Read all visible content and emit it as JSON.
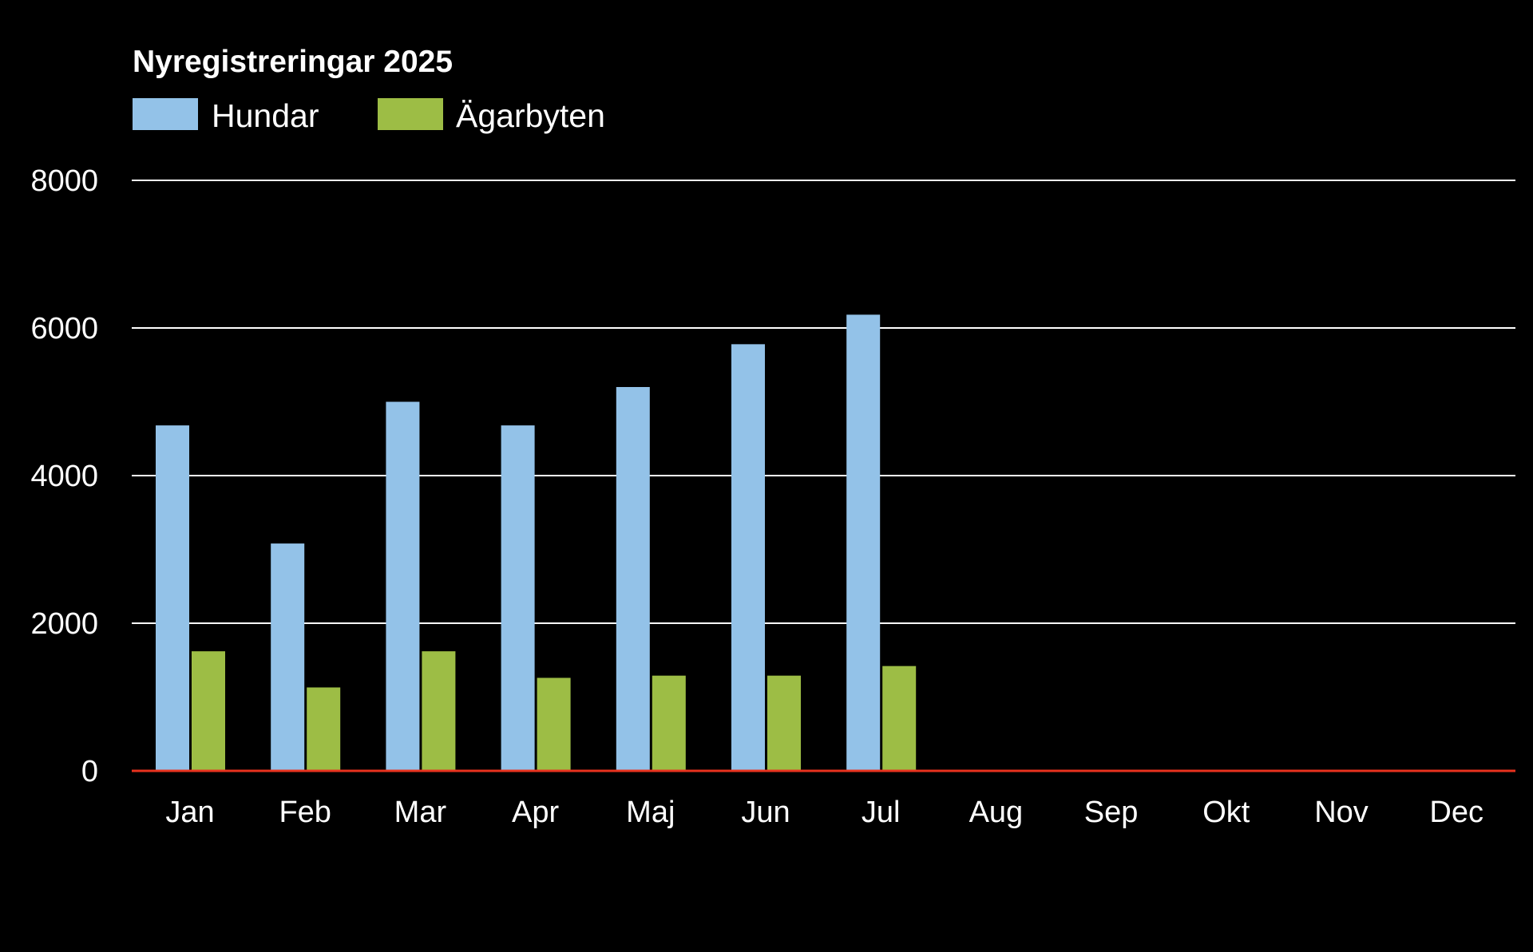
{
  "chart_data": {
    "type": "bar",
    "title": "Nyregistreringar 2025",
    "xlabel": "",
    "ylabel": "",
    "ylim": [
      0,
      8000
    ],
    "yticks": [
      0,
      2000,
      4000,
      6000,
      8000
    ],
    "grid": true,
    "legend_position": "top-left",
    "categories": [
      "Jan",
      "Feb",
      "Mar",
      "Apr",
      "Maj",
      "Jun",
      "Jul",
      "Aug",
      "Sep",
      "Okt",
      "Nov",
      "Dec"
    ],
    "series": [
      {
        "name": "Hundar",
        "color": "#93c2e8",
        "values": [
          4680,
          3080,
          5000,
          4680,
          5200,
          5780,
          6180,
          null,
          null,
          null,
          null,
          null
        ]
      },
      {
        "name": "Ägarbyten",
        "color": "#9dbd45",
        "values": [
          1620,
          1130,
          1620,
          1260,
          1290,
          1290,
          1420,
          null,
          null,
          null,
          null,
          null
        ]
      }
    ],
    "colors": {
      "background": "#000000",
      "text": "#ffffff",
      "gridline": "#ffffff",
      "baseline": "#e8321e"
    }
  }
}
